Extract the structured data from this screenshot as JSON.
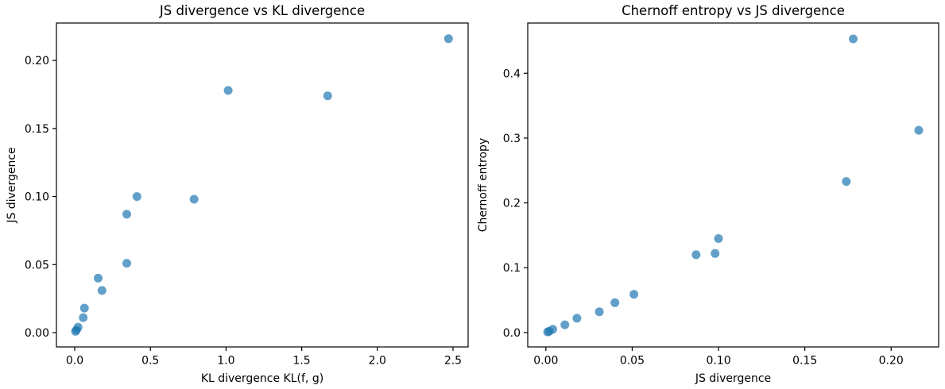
{
  "figure": {
    "background": "#ffffff",
    "marker_color": "#1f77b4",
    "marker_opacity": 0.7,
    "spine_color": "#000000"
  },
  "chart_data": [
    {
      "type": "scatter",
      "title": "JS divergence vs KL divergence",
      "xlabel": "KL divergence KL(f, g)",
      "ylabel": "JS divergence",
      "xlim": [
        -0.121,
        2.6
      ],
      "ylim": [
        -0.0105,
        0.2275
      ],
      "xticks": [
        0.0,
        0.5,
        1.0,
        1.5,
        2.0,
        2.5
      ],
      "xtick_labels": [
        "0.0",
        "0.5",
        "1.0",
        "1.5",
        "2.0",
        "2.5"
      ],
      "yticks": [
        0.0,
        0.05,
        0.1,
        0.15,
        0.2
      ],
      "ytick_labels": [
        "0.00",
        "0.05",
        "0.10",
        "0.15",
        "0.20"
      ],
      "grid": false,
      "legend": null,
      "series": [
        {
          "name": "points",
          "x": [
            0.005,
            0.012,
            0.022,
            0.056,
            0.064,
            0.155,
            0.18,
            0.344,
            0.344,
            0.411,
            0.789,
            1.014,
            1.672,
            2.47
          ],
          "y": [
            0.001,
            0.002,
            0.004,
            0.011,
            0.018,
            0.04,
            0.031,
            0.051,
            0.087,
            0.1,
            0.098,
            0.178,
            0.174,
            0.216
          ]
        }
      ]
    },
    {
      "type": "scatter",
      "title": "Chernoff entropy vs JS divergence",
      "xlabel": "JS divergence",
      "ylabel": "Chernoff entropy",
      "xlim": [
        -0.0105,
        0.2275
      ],
      "ylim": [
        -0.0222,
        0.4775
      ],
      "xticks": [
        0.0,
        0.05,
        0.1,
        0.15,
        0.2
      ],
      "xtick_labels": [
        "0.00",
        "0.05",
        "0.10",
        "0.15",
        "0.20"
      ],
      "yticks": [
        0.0,
        0.1,
        0.2,
        0.3,
        0.4
      ],
      "ytick_labels": [
        "0.0",
        "0.1",
        "0.2",
        "0.3",
        "0.4"
      ],
      "grid": false,
      "legend": null,
      "series": [
        {
          "name": "points",
          "x": [
            0.001,
            0.002,
            0.004,
            0.011,
            0.018,
            0.04,
            0.031,
            0.051,
            0.087,
            0.1,
            0.098,
            0.178,
            0.174,
            0.216
          ],
          "y": [
            0.001,
            0.002,
            0.005,
            0.012,
            0.022,
            0.046,
            0.032,
            0.059,
            0.12,
            0.145,
            0.122,
            0.453,
            0.233,
            0.312
          ]
        }
      ]
    }
  ]
}
